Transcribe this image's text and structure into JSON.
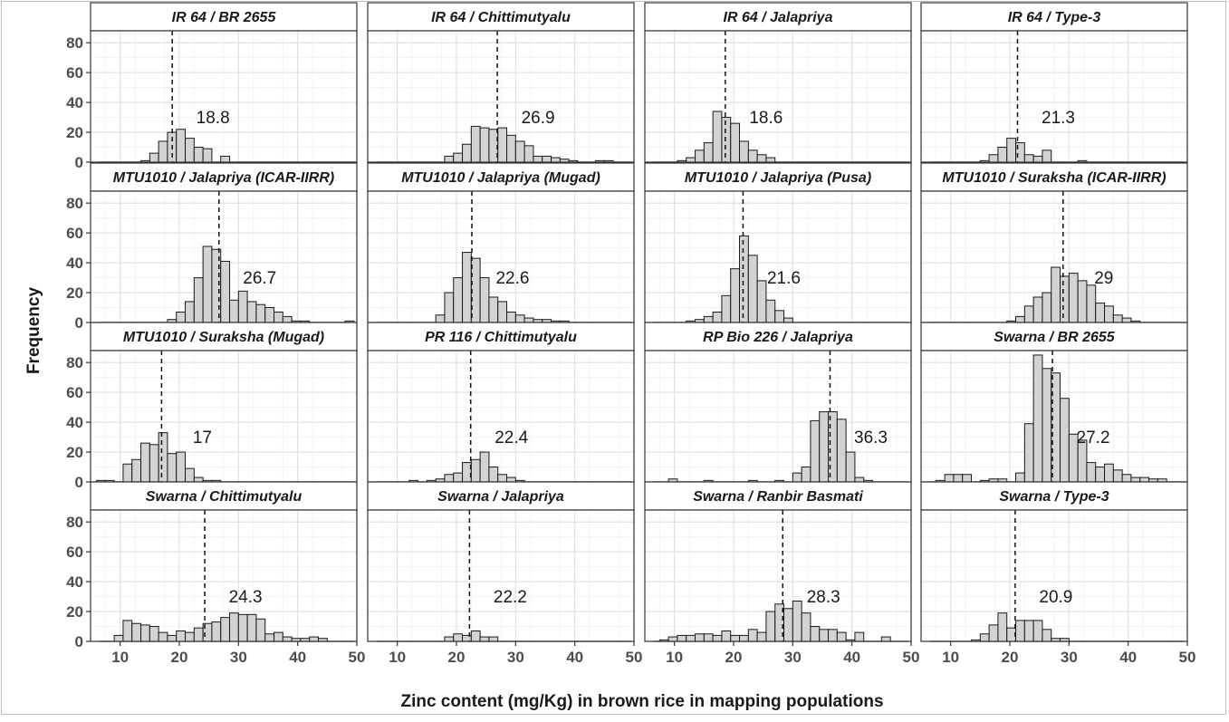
{
  "chart_data": {
    "type": "bar",
    "subtype": "faceted-histogram",
    "xlabel": "Zinc content (mg/Kg) in brown rice in mapping populations",
    "ylabel": "Frequency",
    "xlim": [
      5,
      50
    ],
    "ylim": [
      0,
      88
    ],
    "x_ticks": [
      10,
      20,
      30,
      40,
      50
    ],
    "y_ticks": [
      0,
      20,
      40,
      60,
      80
    ],
    "bin_width": 1.5,
    "grid": true,
    "mean_line_style": "dashed",
    "panels": [
      {
        "title": "IR 64 / BR 2655",
        "mean": 18.8,
        "mean_label": "18.8",
        "bins": [
          [
            13.5,
            1
          ],
          [
            15,
            6
          ],
          [
            16.5,
            14
          ],
          [
            18,
            20
          ],
          [
            19.5,
            22
          ],
          [
            21,
            16
          ],
          [
            22.5,
            10
          ],
          [
            24,
            9
          ],
          [
            27,
            4
          ]
        ]
      },
      {
        "title": "IR 64 / Chittimutyalu",
        "mean": 26.9,
        "mean_label": "26.9",
        "bins": [
          [
            18,
            4
          ],
          [
            19.5,
            6
          ],
          [
            21,
            12
          ],
          [
            22.5,
            24
          ],
          [
            24,
            23
          ],
          [
            25.5,
            22
          ],
          [
            27,
            23
          ],
          [
            28.5,
            18
          ],
          [
            30,
            14
          ],
          [
            31.5,
            11
          ],
          [
            33,
            4
          ],
          [
            34.5,
            4
          ],
          [
            36,
            3
          ],
          [
            37.5,
            2
          ],
          [
            39,
            1
          ],
          [
            43.5,
            1
          ],
          [
            45,
            1
          ]
        ]
      },
      {
        "title": "IR 64 / Jalapriya",
        "mean": 18.6,
        "mean_label": "18.6",
        "bins": [
          [
            10.5,
            1
          ],
          [
            12,
            3
          ],
          [
            13.5,
            8
          ],
          [
            15,
            13
          ],
          [
            16.5,
            34
          ],
          [
            18,
            30
          ],
          [
            19.5,
            26
          ],
          [
            21,
            14
          ],
          [
            22.5,
            8
          ],
          [
            24,
            5
          ],
          [
            25.5,
            3
          ]
        ]
      },
      {
        "title": "IR 64 / Type-3",
        "mean": 21.3,
        "mean_label": "21.3",
        "bins": [
          [
            15,
            1
          ],
          [
            16.5,
            5
          ],
          [
            18,
            10
          ],
          [
            19.5,
            16
          ],
          [
            21,
            13
          ],
          [
            22.5,
            5
          ],
          [
            24,
            4
          ],
          [
            25.5,
            8
          ],
          [
            31.5,
            1
          ]
        ]
      },
      {
        "title": "MTU1010 / Jalapriya (ICAR-IIRR)",
        "mean": 26.7,
        "mean_label": "26.7",
        "bins": [
          [
            18,
            2
          ],
          [
            19.5,
            7
          ],
          [
            21,
            14
          ],
          [
            22.5,
            30
          ],
          [
            24,
            51
          ],
          [
            25.5,
            49
          ],
          [
            27,
            41
          ],
          [
            28.5,
            15
          ],
          [
            30,
            21
          ],
          [
            31.5,
            14
          ],
          [
            33,
            12
          ],
          [
            34.5,
            10
          ],
          [
            36,
            7
          ],
          [
            37.5,
            4
          ],
          [
            39,
            1
          ],
          [
            40.5,
            1
          ],
          [
            48,
            1
          ]
        ]
      },
      {
        "title": "MTU1010 / Jalapriya (Mugad)",
        "mean": 22.6,
        "mean_label": "22.6",
        "bins": [
          [
            16.5,
            5
          ],
          [
            18,
            20
          ],
          [
            19.5,
            30
          ],
          [
            21,
            47
          ],
          [
            22.5,
            43
          ],
          [
            24,
            30
          ],
          [
            25.5,
            17
          ],
          [
            27,
            14
          ],
          [
            28.5,
            7
          ],
          [
            30,
            5
          ],
          [
            31.5,
            3
          ],
          [
            33,
            2
          ],
          [
            34.5,
            2
          ],
          [
            36,
            1
          ],
          [
            37.5,
            1
          ]
        ]
      },
      {
        "title": "MTU1010 / Jalapriya (Pusa)",
        "mean": 21.6,
        "mean_label": "21.6",
        "bins": [
          [
            12,
            1
          ],
          [
            13.5,
            2
          ],
          [
            15,
            4
          ],
          [
            16.5,
            7
          ],
          [
            18,
            18
          ],
          [
            19.5,
            36
          ],
          [
            21,
            58
          ],
          [
            22.5,
            45
          ],
          [
            24,
            28
          ],
          [
            25.5,
            15
          ],
          [
            27,
            8
          ],
          [
            28.5,
            3
          ]
        ]
      },
      {
        "title": "MTU1010 / Suraksha (ICAR-IIRR)",
        "mean": 29,
        "mean_label": "29",
        "bins": [
          [
            19.5,
            1
          ],
          [
            21,
            4
          ],
          [
            22.5,
            11
          ],
          [
            24,
            17
          ],
          [
            25.5,
            20
          ],
          [
            27,
            37
          ],
          [
            28.5,
            31
          ],
          [
            30,
            33
          ],
          [
            31.5,
            28
          ],
          [
            33,
            25
          ],
          [
            34.5,
            13
          ],
          [
            36,
            11
          ],
          [
            37.5,
            5
          ],
          [
            39,
            3
          ],
          [
            40.5,
            1
          ]
        ]
      },
      {
        "title": "MTU1010 / Suraksha (Mugad)",
        "mean": 17,
        "mean_label": "17",
        "bins": [
          [
            6,
            1
          ],
          [
            7.5,
            1
          ],
          [
            10.5,
            12
          ],
          [
            12,
            15
          ],
          [
            13.5,
            26
          ],
          [
            15,
            25
          ],
          [
            16.5,
            33
          ],
          [
            18,
            19
          ],
          [
            19.5,
            20
          ],
          [
            21,
            9
          ],
          [
            22.5,
            3
          ],
          [
            24,
            1
          ],
          [
            25.5,
            1
          ]
        ]
      },
      {
        "title": "PR 116 / Chittimutyalu",
        "mean": 22.4,
        "mean_label": "22.4",
        "bins": [
          [
            12,
            1
          ],
          [
            15,
            1
          ],
          [
            16.5,
            2
          ],
          [
            18,
            5
          ],
          [
            19.5,
            6
          ],
          [
            21,
            13
          ],
          [
            22.5,
            15
          ],
          [
            24,
            20
          ],
          [
            25.5,
            10
          ],
          [
            27,
            5
          ],
          [
            28.5,
            3
          ],
          [
            30,
            1
          ]
        ]
      },
      {
        "title": "RP Bio 226 / Jalapriya",
        "mean": 36.3,
        "mean_label": "36.3",
        "bins": [
          [
            9,
            2
          ],
          [
            15,
            1
          ],
          [
            22.5,
            1
          ],
          [
            27,
            1
          ],
          [
            30,
            6
          ],
          [
            31.5,
            10
          ],
          [
            33,
            41
          ],
          [
            34.5,
            47
          ],
          [
            36,
            47
          ],
          [
            37.5,
            42
          ],
          [
            39,
            20
          ],
          [
            40.5,
            3
          ],
          [
            42,
            1
          ]
        ]
      },
      {
        "title": "Swarna / BR 2655",
        "mean": 27.2,
        "mean_label": "27.2",
        "bins": [
          [
            7.5,
            1
          ],
          [
            9,
            5
          ],
          [
            10.5,
            5
          ],
          [
            12,
            5
          ],
          [
            15,
            1
          ],
          [
            16.5,
            2
          ],
          [
            18,
            2
          ],
          [
            21,
            6
          ],
          [
            22.5,
            39
          ],
          [
            24,
            85
          ],
          [
            25.5,
            76
          ],
          [
            27,
            73
          ],
          [
            28.5,
            56
          ],
          [
            30,
            32
          ],
          [
            31.5,
            28
          ],
          [
            33,
            13
          ],
          [
            34.5,
            10
          ],
          [
            36,
            12
          ],
          [
            37.5,
            8
          ],
          [
            39,
            5
          ],
          [
            40.5,
            3
          ],
          [
            42,
            3
          ],
          [
            43.5,
            2
          ],
          [
            45,
            2
          ]
        ]
      },
      {
        "title": "Swarna / Chittimutyalu",
        "mean": 24.3,
        "mean_label": "24.3",
        "bins": [
          [
            9,
            4
          ],
          [
            10.5,
            14
          ],
          [
            12,
            12
          ],
          [
            13.5,
            11
          ],
          [
            15,
            10
          ],
          [
            16.5,
            6
          ],
          [
            18,
            4
          ],
          [
            19.5,
            7
          ],
          [
            21,
            6
          ],
          [
            22.5,
            9
          ],
          [
            24,
            12
          ],
          [
            25.5,
            13
          ],
          [
            27,
            16
          ],
          [
            28.5,
            19
          ],
          [
            30,
            18
          ],
          [
            31.5,
            18
          ],
          [
            33,
            15
          ],
          [
            34.5,
            5
          ],
          [
            36,
            6
          ],
          [
            37.5,
            3
          ],
          [
            39,
            2
          ],
          [
            40.5,
            2
          ],
          [
            42,
            3
          ],
          [
            43.5,
            2
          ]
        ]
      },
      {
        "title": "Swarna / Jalapriya",
        "mean": 22.2,
        "mean_label": "22.2",
        "bins": [
          [
            18,
            3
          ],
          [
            19.5,
            5
          ],
          [
            21,
            4
          ],
          [
            22.5,
            7
          ],
          [
            24,
            3
          ],
          [
            25.5,
            3
          ]
        ]
      },
      {
        "title": "Swarna / Ranbir Basmati",
        "mean": 28.3,
        "mean_label": "28.3",
        "bins": [
          [
            7.5,
            1
          ],
          [
            9,
            3
          ],
          [
            10.5,
            4
          ],
          [
            12,
            4
          ],
          [
            13.5,
            5
          ],
          [
            15,
            5
          ],
          [
            16.5,
            4
          ],
          [
            18,
            7
          ],
          [
            19.5,
            4
          ],
          [
            21,
            4
          ],
          [
            22.5,
            8
          ],
          [
            24,
            6
          ],
          [
            25.5,
            20
          ],
          [
            27,
            25
          ],
          [
            28.5,
            22
          ],
          [
            30,
            27
          ],
          [
            31.5,
            19
          ],
          [
            33,
            10
          ],
          [
            34.5,
            8
          ],
          [
            36,
            8
          ],
          [
            37.5,
            6
          ],
          [
            39,
            1
          ],
          [
            40.5,
            6
          ],
          [
            45,
            3
          ]
        ]
      },
      {
        "title": "Swarna / Type-3",
        "mean": 20.9,
        "mean_label": "20.9",
        "bins": [
          [
            13.5,
            1
          ],
          [
            15,
            5
          ],
          [
            16.5,
            11
          ],
          [
            18,
            19
          ],
          [
            19.5,
            9
          ],
          [
            21,
            14
          ],
          [
            22.5,
            14
          ],
          [
            24,
            14
          ],
          [
            25.5,
            8
          ],
          [
            27,
            2
          ],
          [
            28.5,
            2
          ]
        ]
      }
    ]
  },
  "colors": {
    "bar_fill": "#d3d3d3",
    "bar_stroke": "#1a1a1a",
    "strip_fill": "#ffffff",
    "panel_border": "#333333",
    "grid_major": "#e3e3e3",
    "grid_minor": "#f2f2f2",
    "axis_text": "#4d4d4d",
    "title_text": "#1a1a1a"
  }
}
